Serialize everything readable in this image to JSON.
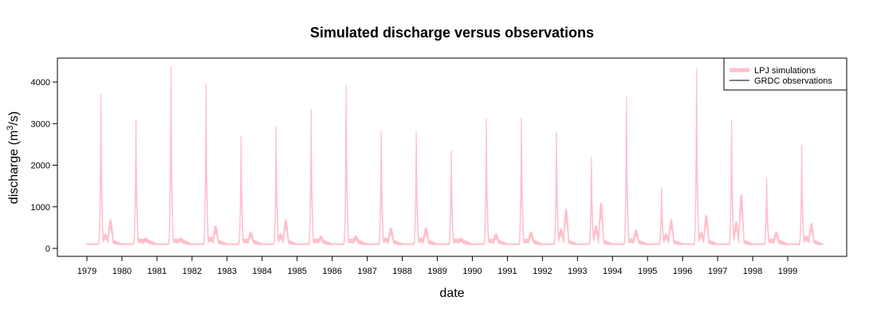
{
  "chart_data": {
    "type": "area",
    "title": "Simulated discharge versus observations",
    "xlabel": "date",
    "ylabel": "discharge (m",
    "ylabel_superscript": "3",
    "ylabel_suffix": "/s)",
    "ylim": [
      0,
      4500
    ],
    "xlim": [
      1979,
      1999.99
    ],
    "y_ticks": [
      0,
      1000,
      2000,
      3000,
      4000
    ],
    "x_ticks": [
      "1979",
      "1980",
      "1981",
      "1982",
      "1983",
      "1984",
      "1985",
      "1986",
      "1987",
      "1988",
      "1989",
      "1990",
      "1991",
      "1992",
      "1993",
      "1994",
      "1995",
      "1996",
      "1997",
      "1998",
      "1999"
    ],
    "legend_position": "top-right",
    "grid": false,
    "series": [
      {
        "name": "LPJ simulations",
        "color": "#ffc0cb",
        "style": "band",
        "annual_base": 110,
        "annual_peaks": [
          {
            "year": 1979,
            "peak": 3700,
            "peak_low": 1150,
            "secondary": 700
          },
          {
            "year": 1980,
            "peak": 3100,
            "peak_low": 1000,
            "secondary": 250
          },
          {
            "year": 1981,
            "peak": 4380,
            "peak_low": 1250,
            "secondary": 250
          },
          {
            "year": 1982,
            "peak": 3960,
            "peak_low": 1300,
            "secondary": 550
          },
          {
            "year": 1983,
            "peak": 2700,
            "peak_low": 900,
            "secondary": 400
          },
          {
            "year": 1984,
            "peak": 2930,
            "peak_low": 1000,
            "secondary": 700
          },
          {
            "year": 1985,
            "peak": 3350,
            "peak_low": 1100,
            "secondary": 300
          },
          {
            "year": 1986,
            "peak": 3930,
            "peak_low": 1300,
            "secondary": 300
          },
          {
            "year": 1987,
            "peak": 2830,
            "peak_low": 950,
            "secondary": 500
          },
          {
            "year": 1988,
            "peak": 2820,
            "peak_low": 950,
            "secondary": 500
          },
          {
            "year": 1989,
            "peak": 2350,
            "peak_low": 800,
            "secondary": 250
          },
          {
            "year": 1990,
            "peak": 3130,
            "peak_low": 1050,
            "secondary": 350
          },
          {
            "year": 1991,
            "peak": 3150,
            "peak_low": 1050,
            "secondary": 400
          },
          {
            "year": 1992,
            "peak": 2800,
            "peak_low": 950,
            "secondary": 950
          },
          {
            "year": 1993,
            "peak": 2200,
            "peak_low": 750,
            "secondary": 1100
          },
          {
            "year": 1994,
            "peak": 3640,
            "peak_low": 1200,
            "secondary": 450
          },
          {
            "year": 1995,
            "peak": 1450,
            "peak_low": 550,
            "secondary": 700
          },
          {
            "year": 1996,
            "peak": 4330,
            "peak_low": 1400,
            "secondary": 800
          },
          {
            "year": 1997,
            "peak": 3100,
            "peak_low": 1000,
            "secondary": 1300
          },
          {
            "year": 1998,
            "peak": 1680,
            "peak_low": 700,
            "secondary": 400
          },
          {
            "year": 1999,
            "peak": 2480,
            "peak_low": 850,
            "secondary": 600
          }
        ]
      },
      {
        "name": "GRDC observations",
        "color": "#000000",
        "style": "line",
        "values": []
      }
    ]
  }
}
